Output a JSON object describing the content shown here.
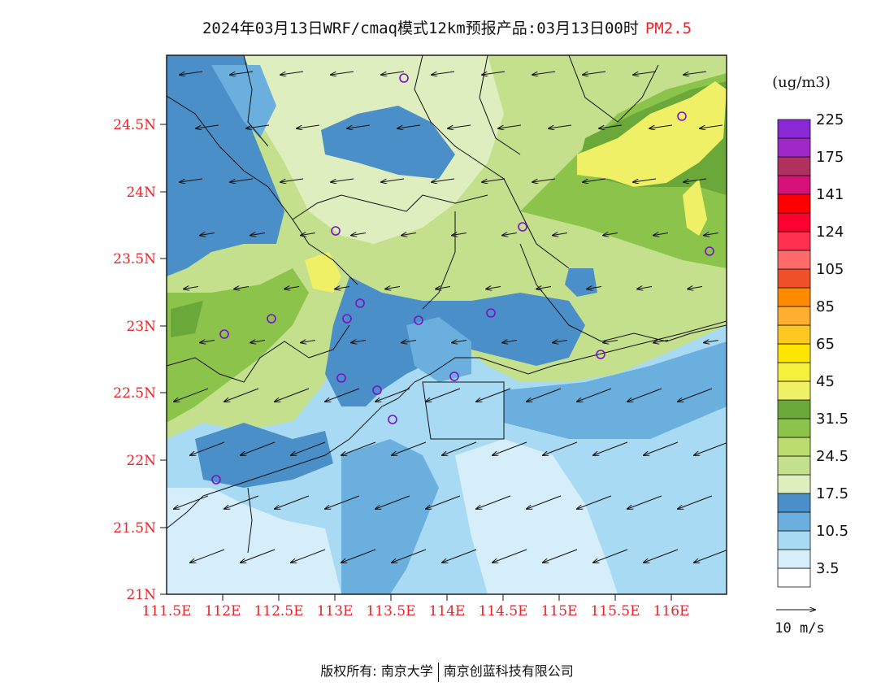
{
  "title": {
    "text": "2024年03月13日WRF/cmaq模式12km预报产品:03月13日00时",
    "pollutant": "PM2.5",
    "pollutant_color": "#e8242c"
  },
  "map": {
    "lat_labels": [
      "24.5N",
      "24N",
      "23.5N",
      "23N",
      "22.5N",
      "22N",
      "21.5N",
      "21N"
    ],
    "lon_labels": [
      "111.5E",
      "112E",
      "112.5E",
      "113E",
      "113.5E",
      "114E",
      "114.5E",
      "115E",
      "115.5E",
      "116E"
    ],
    "axis_label_color": "#e8242c"
  },
  "legend": {
    "unit": "(ug/m3)",
    "colors": [
      "#ffffff",
      "#d6eefa",
      "#a8daf4",
      "#6aafde",
      "#4b8fc8",
      "#dfeebf",
      "#c4e08c",
      "#bcdd6e",
      "#8cc44b",
      "#6aa83a",
      "#f0f066",
      "#f5f03a",
      "#ffe500",
      "#ffc820",
      "#ffae30",
      "#ff8a00",
      "#f05028",
      "#ff6a6a",
      "#ff3050",
      "#ff0030",
      "#ff0000",
      "#d8107a",
      "#b03060",
      "#a028c8",
      "#8a28d8"
    ],
    "tick_labels": [
      "3.5",
      "10.5",
      "17.5",
      "24.5",
      "31.5",
      "45",
      "65",
      "85",
      "105",
      "124",
      "141",
      "175",
      "225"
    ]
  },
  "wind": {
    "scale_label": "10 m/s"
  },
  "copyright": {
    "prefix": "版权所有:",
    "org1": "南京大学",
    "org2": "南京创蓝科技有限公司"
  }
}
